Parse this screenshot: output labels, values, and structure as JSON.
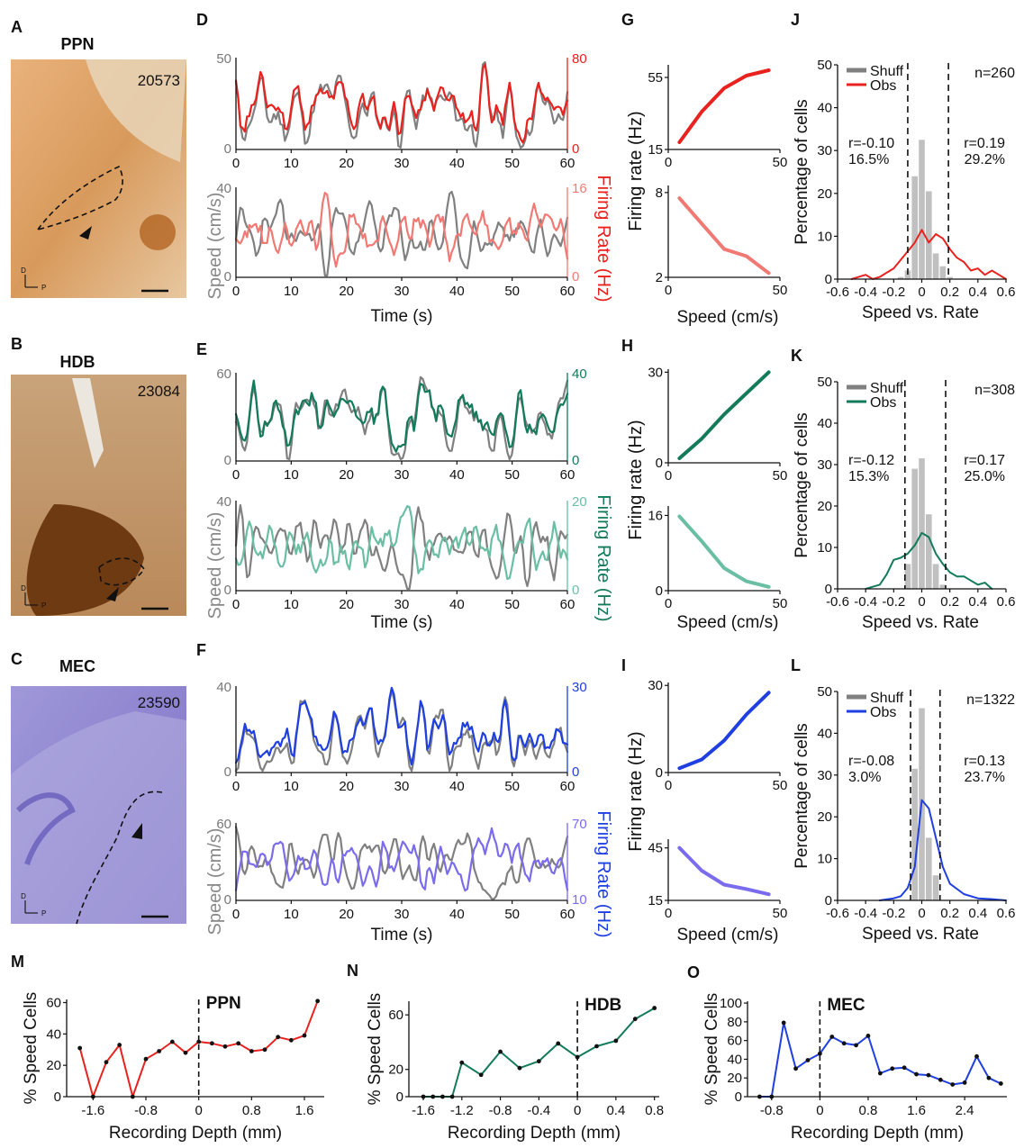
{
  "colors": {
    "gray": "#808080",
    "ppn": "#e8221e",
    "ppn_light": "#f07a73",
    "hdb": "#137a5a",
    "hdb_light": "#6abfa3",
    "mec": "#1f3fe0",
    "mec_light": "#7a6cec",
    "shuff": "#c0c0c0"
  },
  "panel_letters": [
    "A",
    "B",
    "C",
    "D",
    "E",
    "F",
    "G",
    "H",
    "I",
    "J",
    "K",
    "L",
    "M",
    "N",
    "O"
  ],
  "histology": [
    {
      "title": "PPN",
      "id": "20573",
      "axis_d": "D",
      "axis_p": "P"
    },
    {
      "title": "HDB",
      "id": "23084",
      "axis_d": "D",
      "axis_p": "P"
    },
    {
      "title": "MEC",
      "id": "23590",
      "axis_d": "D",
      "axis_p": "P"
    }
  ],
  "labels": {
    "speed_axis": "Speed (cm/s)",
    "time_axis": "Time (s)",
    "firing_rate_axis": "Firing Rate (Hz)",
    "tuning_y": "Firing rate (Hz)",
    "tuning_x": "Speed (cm/s)",
    "hist_y": "Percentage of cells",
    "hist_x": "Speed vs. Rate",
    "depth_y": "% Speed Cells",
    "depth_x": "Recording Depth (mm)",
    "legend_shuff": "Shuff",
    "legend_obs": "Obs"
  },
  "chart_data": [
    {
      "type": "line",
      "panel": "D",
      "time": [
        0,
        60
      ],
      "speed_range": [
        0,
        50
      ],
      "speed_ticks": [
        "0",
        "50"
      ],
      "rate_range": [
        0,
        80
      ],
      "rate_ticks": [
        "0",
        "80"
      ],
      "x_ticks": [
        "0",
        "10",
        "20",
        "30",
        "40",
        "50",
        "60"
      ],
      "cell": "positive speed cell, PPN"
    },
    {
      "type": "line",
      "panel": "D",
      "time": [
        0,
        60
      ],
      "speed_range": [
        0,
        40
      ],
      "speed_ticks": [
        "0",
        "40"
      ],
      "rate_range": [
        0,
        16
      ],
      "rate_ticks": [
        "0",
        "16"
      ],
      "x_ticks": [
        "0",
        "10",
        "20",
        "30",
        "40",
        "50",
        "60"
      ],
      "cell": "negative speed cell, PPN"
    },
    {
      "type": "line",
      "panel": "E",
      "time": [
        0,
        60
      ],
      "speed_range": [
        0,
        65
      ],
      "speed_ticks": [
        "0",
        "60"
      ],
      "rate_range": [
        0,
        43
      ],
      "rate_ticks": [
        "0",
        "40"
      ],
      "x_ticks": [
        "0",
        "10",
        "20",
        "30",
        "40",
        "50",
        "60"
      ],
      "cell": "positive speed cell, HDB"
    },
    {
      "type": "line",
      "panel": "E",
      "time": [
        0,
        60
      ],
      "speed_range": [
        0,
        40
      ],
      "speed_ticks": [
        "0",
        "40"
      ],
      "rate_range": [
        0,
        22
      ],
      "rate_ticks": [
        "0",
        "20"
      ],
      "x_ticks": [
        "0",
        "10",
        "20",
        "30",
        "40",
        "50",
        "60"
      ],
      "cell": "negative speed cell, HDB"
    },
    {
      "type": "line",
      "panel": "F",
      "time": [
        0,
        60
      ],
      "speed_range": [
        0,
        43
      ],
      "speed_ticks": [
        "0",
        "40"
      ],
      "rate_range": [
        0,
        30
      ],
      "rate_ticks": [
        "0",
        "30"
      ],
      "x_ticks": [
        "0",
        "10",
        "20",
        "30",
        "40",
        "50",
        "60"
      ],
      "cell": "positive speed cell, MEC"
    },
    {
      "type": "line",
      "panel": "F",
      "time": [
        0,
        60
      ],
      "speed_range": [
        0,
        65
      ],
      "speed_ticks": [
        "0",
        "60"
      ],
      "rate_range": [
        10,
        75
      ],
      "rate_ticks": [
        "10",
        "70"
      ],
      "x_ticks": [
        "0",
        "10",
        "20",
        "30",
        "40",
        "50",
        "60"
      ],
      "cell": "negative speed cell, MEC"
    },
    {
      "type": "line",
      "panel": "G",
      "xlim": [
        0,
        50
      ],
      "ylim": [
        15,
        62
      ],
      "y_ticks": [
        "15",
        "55"
      ],
      "x_ticks": [
        "0",
        "50"
      ],
      "x": [
        5,
        15,
        25,
        35,
        45
      ],
      "values": [
        19,
        36,
        49,
        56,
        59
      ]
    },
    {
      "type": "line",
      "panel": "G",
      "xlim": [
        0,
        50
      ],
      "ylim": [
        2,
        8.5
      ],
      "y_ticks": [
        "2",
        "8"
      ],
      "x_ticks": [
        "0",
        "50"
      ],
      "x": [
        5,
        15,
        25,
        35,
        45
      ],
      "values": [
        7.6,
        5.8,
        4.0,
        3.5,
        2.3
      ]
    },
    {
      "type": "line",
      "panel": "H",
      "xlim": [
        0,
        50
      ],
      "ylim": [
        0,
        31
      ],
      "y_ticks": [
        "0",
        "30"
      ],
      "x_ticks": [
        "0",
        "50"
      ],
      "x": [
        5,
        15,
        25,
        35,
        45
      ],
      "values": [
        1.5,
        8,
        16,
        23,
        30
      ]
    },
    {
      "type": "line",
      "panel": "H",
      "xlim": [
        0,
        50
      ],
      "ylim": [
        0,
        18
      ],
      "y_ticks": [
        "0",
        "16"
      ],
      "x_ticks": [
        "0",
        "50"
      ],
      "x": [
        5,
        15,
        25,
        35,
        45
      ],
      "values": [
        15.8,
        10.5,
        4.8,
        2.0,
        0.8
      ]
    },
    {
      "type": "line",
      "panel": "I",
      "xlim": [
        0,
        50
      ],
      "ylim": [
        0,
        31
      ],
      "y_ticks": [
        "0",
        "30"
      ],
      "x_ticks": [
        "0",
        "50"
      ],
      "x": [
        5,
        15,
        25,
        35,
        45
      ],
      "values": [
        1.5,
        4.5,
        11,
        20,
        27.5
      ]
    },
    {
      "type": "line",
      "panel": "I",
      "xlim": [
        0,
        50
      ],
      "ylim": [
        15,
        50
      ],
      "y_ticks": [
        "15",
        "45"
      ],
      "x_ticks": [
        "0",
        "50"
      ],
      "x": [
        5,
        15,
        25,
        35,
        45
      ],
      "values": [
        45,
        32,
        24,
        21.5,
        18.5
      ]
    },
    {
      "type": "bar",
      "panel": "J",
      "xlim": [
        -0.6,
        0.6
      ],
      "ylim": [
        0,
        50
      ],
      "x_ticks": [
        "-0.6",
        "-0.4",
        "-0.2",
        "0",
        "0.2",
        "0.4",
        "0.6"
      ],
      "y_ticks": [
        "0",
        "10",
        "20",
        "30",
        "40",
        "50"
      ],
      "n": "n=260",
      "left_stat": "r=-0.10",
      "left_pct": "16.5%",
      "right_stat": "r=0.19",
      "right_pct": "29.2%",
      "thresholds": [
        -0.1,
        0.19
      ],
      "shuff": {
        "x": [
          -0.15,
          -0.1,
          -0.05,
          0,
          0.05,
          0.1,
          0.15,
          0.2
        ],
        "values": [
          0.5,
          2,
          24,
          32.5,
          20.5,
          6,
          3,
          0.5
        ]
      },
      "obs": {
        "x": [
          -0.5,
          -0.45,
          -0.4,
          -0.35,
          -0.3,
          -0.25,
          -0.2,
          -0.15,
          -0.1,
          -0.05,
          0,
          0.05,
          0.1,
          0.15,
          0.2,
          0.25,
          0.3,
          0.35,
          0.4,
          0.45,
          0.5,
          0.55,
          0.6
        ],
        "values": [
          0,
          0.5,
          1.0,
          0,
          0.5,
          1.5,
          2.5,
          4.5,
          6.5,
          8.5,
          11.5,
          8.5,
          10.5,
          9.5,
          7,
          5,
          4,
          2,
          2.5,
          1,
          2,
          1,
          0
        ]
      }
    },
    {
      "type": "bar",
      "panel": "K",
      "xlim": [
        -0.6,
        0.6
      ],
      "ylim": [
        0,
        50
      ],
      "x_ticks": [
        "-0.6",
        "-0.4",
        "-0.2",
        "0",
        "0.2",
        "0.4",
        "0.6"
      ],
      "y_ticks": [
        "0",
        "10",
        "20",
        "30",
        "40",
        "50"
      ],
      "n": "n=308",
      "left_stat": "r=-0.12",
      "left_pct": "15.3%",
      "right_stat": "r=0.17",
      "right_pct": "25.0%",
      "thresholds": [
        -0.12,
        0.17
      ],
      "shuff": {
        "x": [
          -0.1,
          -0.05,
          0,
          0.05,
          0.1,
          0.15
        ],
        "values": [
          6,
          29,
          31.5,
          18,
          6,
          1
        ]
      },
      "obs": {
        "x": [
          -0.4,
          -0.35,
          -0.3,
          -0.25,
          -0.2,
          -0.15,
          -0.1,
          -0.05,
          0,
          0.05,
          0.1,
          0.15,
          0.2,
          0.25,
          0.3,
          0.35,
          0.4,
          0.45,
          0.5
        ],
        "values": [
          0,
          0.5,
          1.0,
          3.5,
          7,
          7.5,
          8.5,
          10.5,
          13.5,
          12.5,
          8.5,
          6,
          4,
          3,
          3,
          2,
          1,
          1.5,
          0
        ]
      }
    },
    {
      "type": "bar",
      "panel": "L",
      "xlim": [
        -0.6,
        0.6
      ],
      "ylim": [
        0,
        50
      ],
      "x_ticks": [
        "-0.6",
        "-0.4",
        "-0.2",
        "0",
        "0.2",
        "0.4",
        "0.6"
      ],
      "y_ticks": [
        "0",
        "10",
        "20",
        "30",
        "40",
        "50"
      ],
      "n": "n=1322",
      "left_stat": "r=-0.08",
      "left_pct": "3.0%",
      "right_stat": "r=0.13",
      "right_pct": "23.7%",
      "thresholds": [
        -0.08,
        0.13
      ],
      "shuff": {
        "x": [
          -0.05,
          0,
          0.05,
          0.1
        ],
        "values": [
          31.5,
          46,
          15,
          6
        ]
      },
      "obs": {
        "x": [
          -0.3,
          -0.2,
          -0.15,
          -0.1,
          -0.05,
          0,
          0.05,
          0.1,
          0.15,
          0.2,
          0.3,
          0.4,
          0.5,
          0.6
        ],
        "values": [
          0,
          0.5,
          1,
          3,
          8,
          24,
          22,
          15,
          8,
          4,
          1.5,
          0.5,
          0.3,
          0
        ]
      }
    },
    {
      "type": "line",
      "panel": "M",
      "title": "PPN",
      "xlim": [
        -2.0,
        1.9
      ],
      "ylim": [
        0,
        62
      ],
      "x_ticks": [
        "-1.6",
        "-0.8",
        "0",
        "0.8",
        "1.6"
      ],
      "x_tick_vals": [
        -1.6,
        -0.8,
        0,
        0.8,
        1.6
      ],
      "y_ticks": [
        "0",
        "20",
        "40",
        "60"
      ],
      "x": [
        -1.8,
        -1.6,
        -1.4,
        -1.2,
        -1.0,
        -0.8,
        -0.6,
        -0.4,
        -0.2,
        0,
        0.2,
        0.4,
        0.6,
        0.8,
        1.0,
        1.2,
        1.4,
        1.6,
        1.8
      ],
      "values": [
        31,
        0,
        22,
        33,
        0,
        24,
        29,
        35,
        28,
        35,
        34,
        32,
        34,
        29,
        30,
        38,
        36,
        39,
        61
      ]
    },
    {
      "type": "line",
      "panel": "N",
      "title": "HDB",
      "xlim": [
        -1.75,
        0.85
      ],
      "ylim": [
        0,
        70
      ],
      "x_ticks": [
        "-1.6",
        "-1.2",
        "-0.8",
        "-0.4",
        "0",
        "0.4",
        "0.8"
      ],
      "x_tick_vals": [
        -1.6,
        -1.2,
        -0.8,
        -0.4,
        0,
        0.4,
        0.8
      ],
      "y_ticks": [
        "0",
        "20",
        "60"
      ],
      "x": [
        -1.6,
        -1.5,
        -1.4,
        -1.3,
        -1.2,
        -1.0,
        -0.8,
        -0.6,
        -0.4,
        -0.2,
        0,
        0.2,
        0.4,
        0.6,
        0.8
      ],
      "values": [
        0,
        0,
        0,
        0,
        25,
        16,
        33,
        21,
        26,
        39,
        29,
        37,
        41,
        57,
        65
      ]
    },
    {
      "type": "line",
      "panel": "O",
      "title": "MEC",
      "xlim": [
        -1.2,
        3.1
      ],
      "ylim": [
        0,
        102
      ],
      "x_ticks": [
        "-0.8",
        "0",
        "0.8",
        "1.6",
        "2.4"
      ],
      "x_tick_vals": [
        -0.8,
        0,
        0.8,
        1.6,
        2.4
      ],
      "y_ticks": [
        "0",
        "20",
        "40",
        "60",
        "80",
        "100"
      ],
      "x": [
        -1.0,
        -0.8,
        -0.6,
        -0.4,
        -0.2,
        0,
        0.2,
        0.4,
        0.6,
        0.8,
        1.0,
        1.2,
        1.4,
        1.6,
        1.8,
        2.0,
        2.2,
        2.4,
        2.6,
        2.8,
        3.0
      ],
      "values": [
        0,
        0,
        79,
        30,
        39,
        46,
        64,
        57,
        55,
        65,
        25,
        30,
        31,
        24,
        23,
        18,
        13,
        15,
        43,
        20,
        14
      ]
    }
  ]
}
